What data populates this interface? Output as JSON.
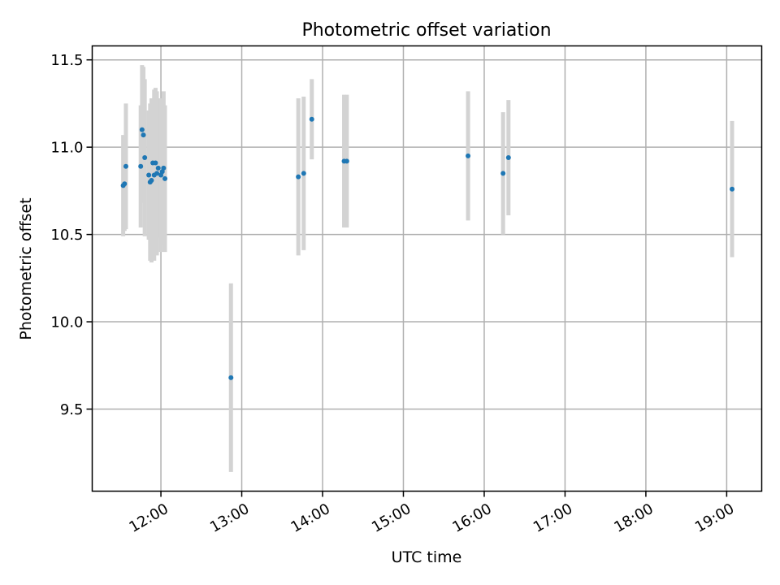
{
  "chart_data": {
    "type": "scatter",
    "title": "Photometric offset variation",
    "xlabel": "UTC time",
    "ylabel": "Photometric offset",
    "x_ticks": [
      "12:00",
      "13:00",
      "14:00",
      "15:00",
      "16:00",
      "17:00",
      "18:00",
      "19:00"
    ],
    "y_ticks": [
      "9.5",
      "10.0",
      "10.5",
      "11.0",
      "11.5"
    ],
    "xlim": [
      "11:09",
      "19:26"
    ],
    "ylim": [
      9.03,
      11.58
    ],
    "grid": true,
    "colors": {
      "point": "#1f77b4",
      "errorbar": "#d3d3d3"
    },
    "series": [
      {
        "points": [
          {
            "x": "11:32",
            "y": 10.78,
            "err": 0.29
          },
          {
            "x": "11:33",
            "y": 10.79,
            "err": 0.27
          },
          {
            "x": "11:34",
            "y": 10.89,
            "err": 0.36
          },
          {
            "x": "11:45",
            "y": 10.89,
            "err": 0.35
          },
          {
            "x": "11:46",
            "y": 11.1,
            "err": 0.37
          },
          {
            "x": "11:47",
            "y": 11.07,
            "err": 0.39
          },
          {
            "x": "11:48",
            "y": 10.94,
            "err": 0.45
          },
          {
            "x": "11:51",
            "y": 10.84,
            "err": 0.37
          },
          {
            "x": "11:52",
            "y": 10.8,
            "err": 0.45
          },
          {
            "x": "11:53",
            "y": 10.81,
            "err": 0.47
          },
          {
            "x": "11:54",
            "y": 10.91,
            "err": 0.37
          },
          {
            "x": "11:55",
            "y": 10.84,
            "err": 0.49
          },
          {
            "x": "11:56",
            "y": 10.91,
            "err": 0.43
          },
          {
            "x": "11:57",
            "y": 10.85,
            "err": 0.47
          },
          {
            "x": "11:58",
            "y": 10.88,
            "err": 0.4
          },
          {
            "x": "12:00",
            "y": 10.84,
            "err": 0.44
          },
          {
            "x": "12:01",
            "y": 10.86,
            "err": 0.42
          },
          {
            "x": "12:02",
            "y": 10.88,
            "err": 0.44
          },
          {
            "x": "12:03",
            "y": 10.82,
            "err": 0.42
          },
          {
            "x": "12:52",
            "y": 9.68,
            "err": 0.54
          },
          {
            "x": "13:42",
            "y": 10.83,
            "err": 0.45
          },
          {
            "x": "13:46",
            "y": 10.85,
            "err": 0.44
          },
          {
            "x": "13:52",
            "y": 11.16,
            "err": 0.23
          },
          {
            "x": "14:16",
            "y": 10.92,
            "err": 0.38
          },
          {
            "x": "14:18",
            "y": 10.92,
            "err": 0.38
          },
          {
            "x": "15:48",
            "y": 10.95,
            "err": 0.37
          },
          {
            "x": "16:14",
            "y": 10.85,
            "err": 0.35
          },
          {
            "x": "16:18",
            "y": 10.94,
            "err": 0.33
          },
          {
            "x": "19:04",
            "y": 10.76,
            "err": 0.39
          }
        ]
      }
    ]
  }
}
